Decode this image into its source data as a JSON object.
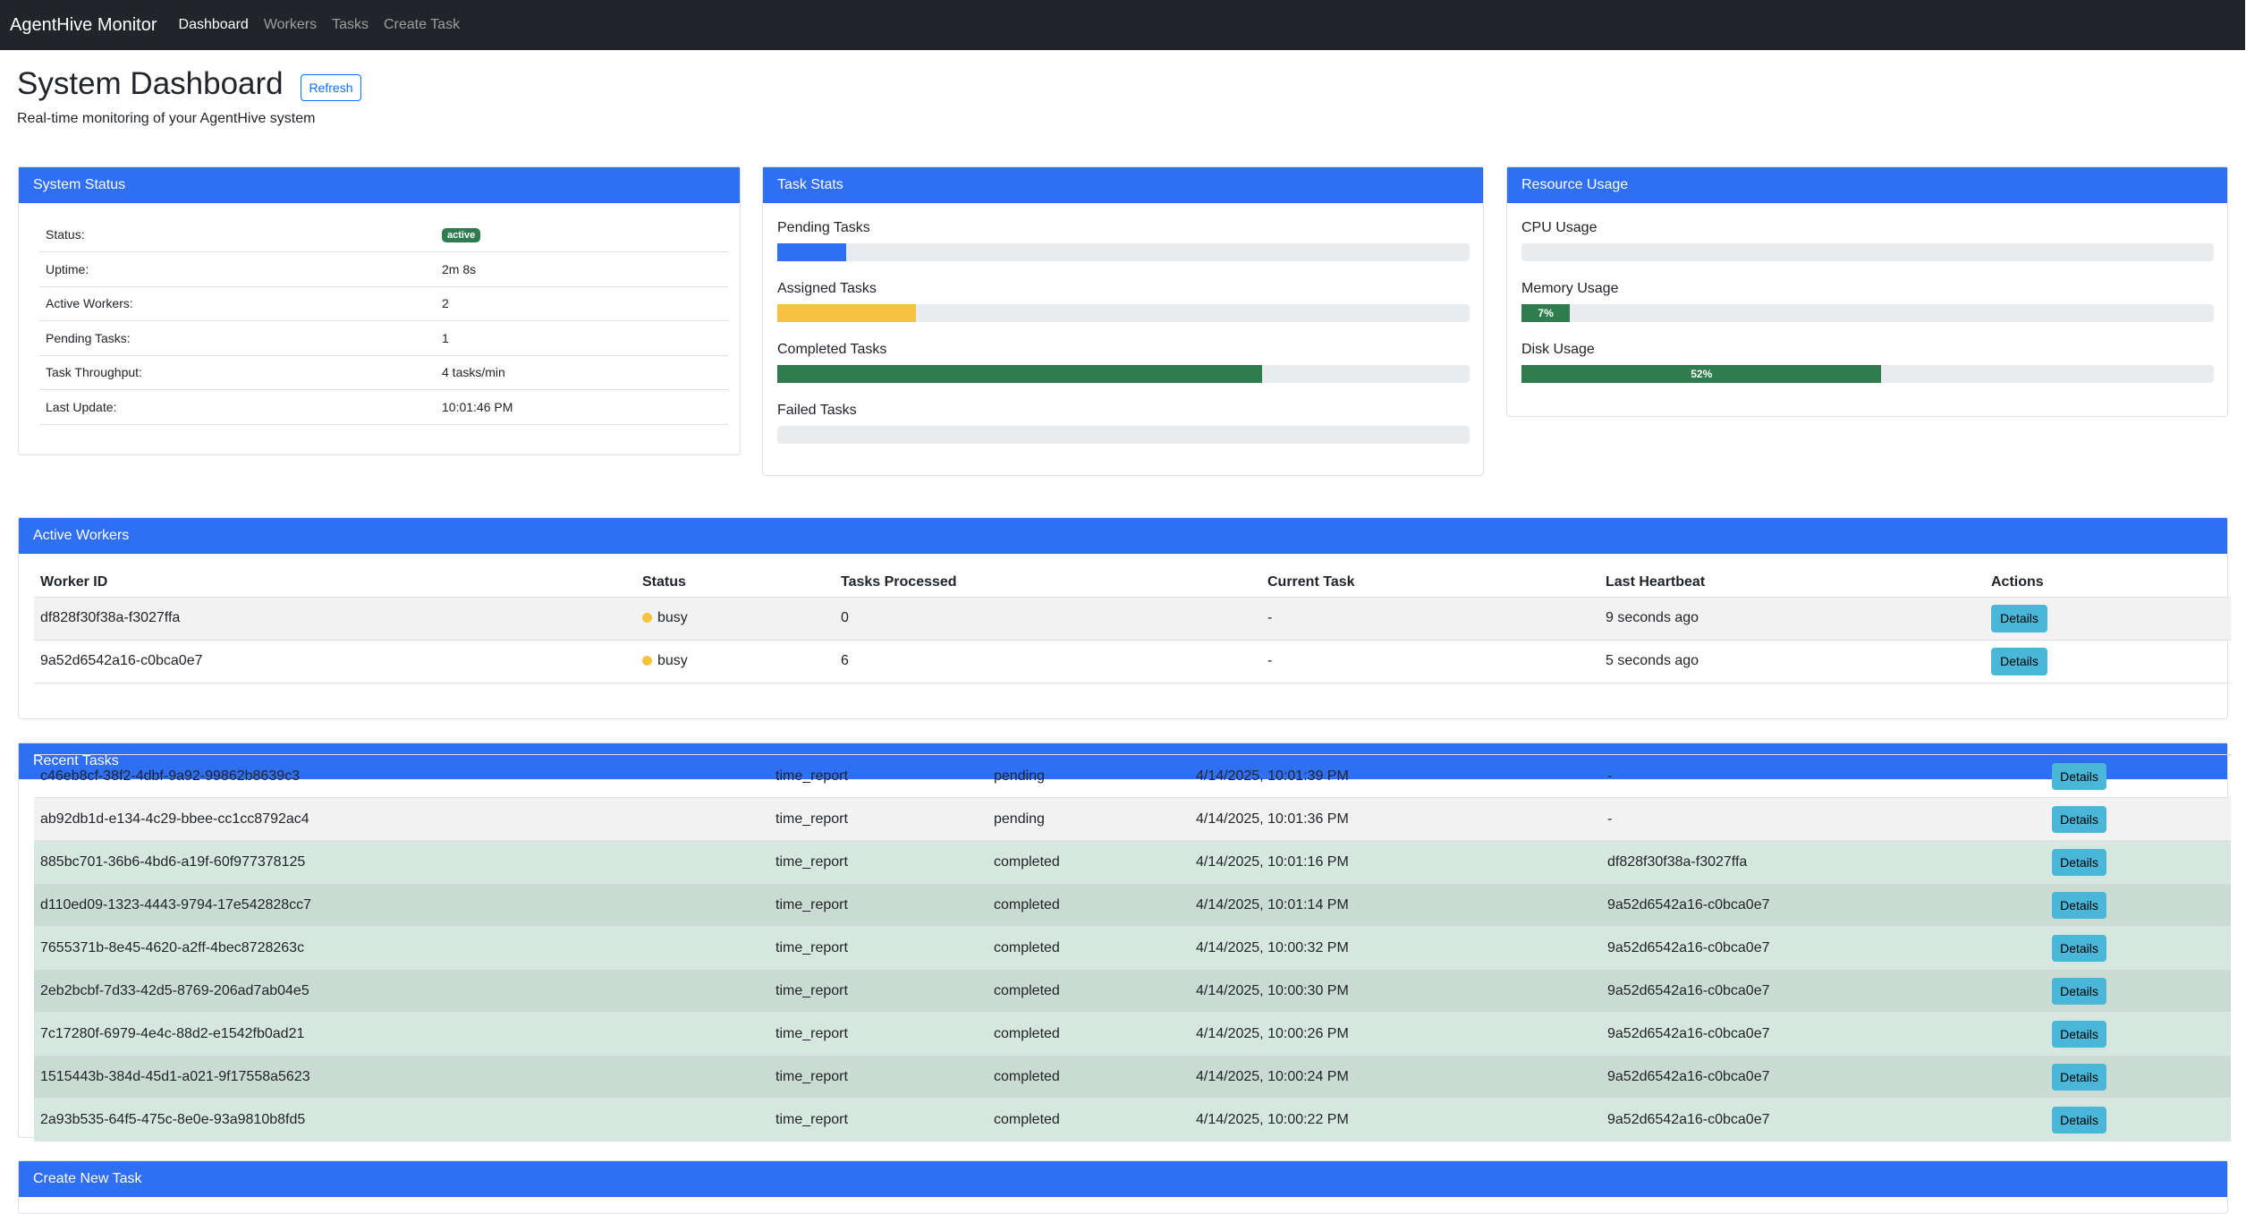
{
  "nav": {
    "brand": "AgentHive Monitor",
    "links": [
      "Dashboard",
      "Workers",
      "Tasks",
      "Create Task"
    ]
  },
  "header": {
    "title": "System Dashboard",
    "refresh_label": "Refresh",
    "subtitle": "Real-time monitoring of your AgentHive system"
  },
  "system_status": {
    "title": "System Status",
    "rows": [
      {
        "label": "Status:",
        "value": "active"
      },
      {
        "label": "Uptime:",
        "value": "2m 8s"
      },
      {
        "label": "Active Workers:",
        "value": "2"
      },
      {
        "label": "Pending Tasks:",
        "value": "1"
      },
      {
        "label": "Task Throughput:",
        "value": "4 tasks/min"
      },
      {
        "label": "Last Update:",
        "value": "10:01:46 PM"
      }
    ],
    "badge_color": "#2f7d4f"
  },
  "task_stats": {
    "title": "Task Stats",
    "items": [
      {
        "label": "Pending Tasks",
        "fraction": 0.1,
        "color": "#2f6ff3"
      },
      {
        "label": "Assigned Tasks",
        "fraction": 0.2,
        "color": "#f5c242"
      },
      {
        "label": "Completed Tasks",
        "fraction": 0.7,
        "color": "#2f7d4f"
      },
      {
        "label": "Failed Tasks",
        "fraction": 0.0,
        "color": "#dc3545"
      }
    ]
  },
  "resource_usage": {
    "title": "Resource Usage",
    "items": [
      {
        "label": "CPU Usage",
        "fraction": 0.0,
        "text": ""
      },
      {
        "label": "Memory Usage",
        "fraction": 0.07,
        "text": "7%"
      },
      {
        "label": "Disk Usage",
        "fraction": 0.52,
        "text": "52%"
      }
    ],
    "bar_color": "#2f7d4f"
  },
  "active_workers": {
    "title": "Active Workers",
    "columns": [
      "Worker ID",
      "Status",
      "Tasks Processed",
      "Current Task",
      "Last Heartbeat",
      "Actions"
    ],
    "rows": [
      {
        "id": "df828f30f38a-f3027ffa",
        "status": "busy",
        "processed": "0",
        "current": "-",
        "heartbeat": "9 seconds ago",
        "action": "Details"
      },
      {
        "id": "9a52d6542a16-c0bca0e7",
        "status": "busy",
        "processed": "6",
        "current": "-",
        "heartbeat": "5 seconds ago",
        "action": "Details"
      }
    ]
  },
  "recent_tasks": {
    "title": "Recent Tasks",
    "rows": [
      {
        "id": "c46eb8cf-38f2-4dbf-9a92-99862b8639c3",
        "type": "time_report",
        "status": "pending",
        "time": "4/14/2025, 10:01:39 PM",
        "worker": "-",
        "action": "Details"
      },
      {
        "id": "ab92db1d-e134-4c29-bbee-cc1cc8792ac4",
        "type": "time_report",
        "status": "pending",
        "time": "4/14/2025, 10:01:36 PM",
        "worker": "-",
        "action": "Details"
      },
      {
        "id": "885bc701-36b6-4bd6-a19f-60f977378125",
        "type": "time_report",
        "status": "completed",
        "time": "4/14/2025, 10:01:16 PM",
        "worker": "df828f30f38a-f3027ffa",
        "action": "Details"
      },
      {
        "id": "d110ed09-1323-4443-9794-17e542828cc7",
        "type": "time_report",
        "status": "completed",
        "time": "4/14/2025, 10:01:14 PM",
        "worker": "9a52d6542a16-c0bca0e7",
        "action": "Details"
      },
      {
        "id": "7655371b-8e45-4620-a2ff-4bec8728263c",
        "type": "time_report",
        "status": "completed",
        "time": "4/14/2025, 10:00:32 PM",
        "worker": "9a52d6542a16-c0bca0e7",
        "action": "Details"
      },
      {
        "id": "2eb2bcbf-7d33-42d5-8769-206ad7ab04e5",
        "type": "time_report",
        "status": "completed",
        "time": "4/14/2025, 10:00:30 PM",
        "worker": "9a52d6542a16-c0bca0e7",
        "action": "Details"
      },
      {
        "id": "7c17280f-6979-4e4c-88d2-e1542fb0ad21",
        "type": "time_report",
        "status": "completed",
        "time": "4/14/2025, 10:00:26 PM",
        "worker": "9a52d6542a16-c0bca0e7",
        "action": "Details"
      },
      {
        "id": "1515443b-384d-45d1-a021-9f17558a5623",
        "type": "time_report",
        "status": "completed",
        "time": "4/14/2025, 10:00:24 PM",
        "worker": "9a52d6542a16-c0bca0e7",
        "action": "Details"
      },
      {
        "id": "2a93b535-64f5-475c-8e0e-93a9810b8fd5",
        "type": "time_report",
        "status": "completed",
        "time": "4/14/2025, 10:00:22 PM",
        "worker": "9a52d6542a16-c0bca0e7",
        "action": "Details"
      }
    ]
  },
  "create_task": {
    "title": "Create New Task"
  },
  "colors": {
    "navbar": "#212529",
    "card_header": "#2f6ff3",
    "busy": "#f5c242",
    "details_button": "#4ab7d8"
  }
}
